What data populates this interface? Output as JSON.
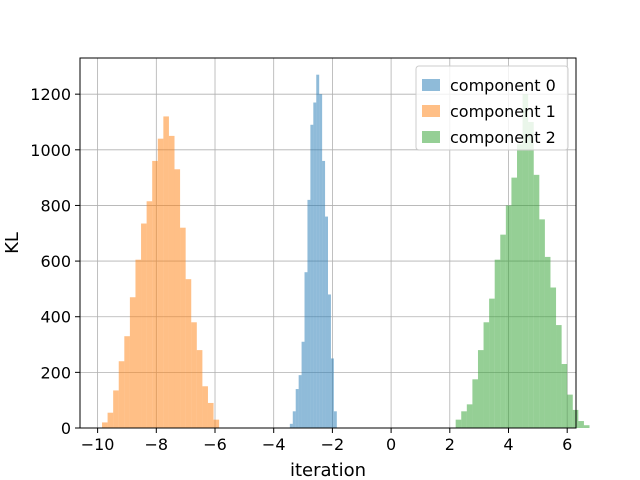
{
  "chart_data": {
    "type": "bar",
    "xlabel": "iteration",
    "ylabel": "KL",
    "xlim": [
      -10.6,
      6.3
    ],
    "ylim": [
      0,
      1330
    ],
    "xticks": [
      -10,
      -8,
      -6,
      -4,
      -2,
      0,
      2,
      4,
      6
    ],
    "xtick_labels": [
      "−10",
      "−8",
      "−6",
      "−4",
      "−2",
      "0",
      "2",
      "4",
      "6"
    ],
    "yticks": [
      0,
      200,
      400,
      600,
      800,
      1000,
      1200
    ],
    "ytick_labels": [
      "0",
      "200",
      "400",
      "600",
      "800",
      "1000",
      "1200"
    ],
    "grid": true,
    "legend_position": "top-right",
    "series": [
      {
        "name": "component 0",
        "color": "#1f77b4",
        "bin_start": -3.45,
        "bin_width": 0.1,
        "values": [
          15,
          60,
          140,
          190,
          310,
          560,
          820,
          1090,
          1170,
          1270,
          1200,
          960,
          760,
          480,
          250,
          60
        ]
      },
      {
        "name": "component 1",
        "color": "#ff7f0e",
        "bin_start": -9.85,
        "bin_width": 0.19,
        "values": [
          20,
          55,
          135,
          240,
          330,
          470,
          605,
          735,
          815,
          960,
          1040,
          1120,
          1050,
          930,
          720,
          535,
          380,
          280,
          150,
          90,
          30
        ]
      },
      {
        "name": "component 2",
        "color": "#2ca02c",
        "bin_start": 2.2,
        "bin_width": 0.19,
        "values": [
          30,
          60,
          85,
          175,
          280,
          380,
          465,
          605,
          695,
          800,
          900,
          1020,
          1200,
          1100,
          910,
          750,
          615,
          505,
          370,
          230,
          120,
          65,
          25,
          10
        ]
      }
    ]
  }
}
